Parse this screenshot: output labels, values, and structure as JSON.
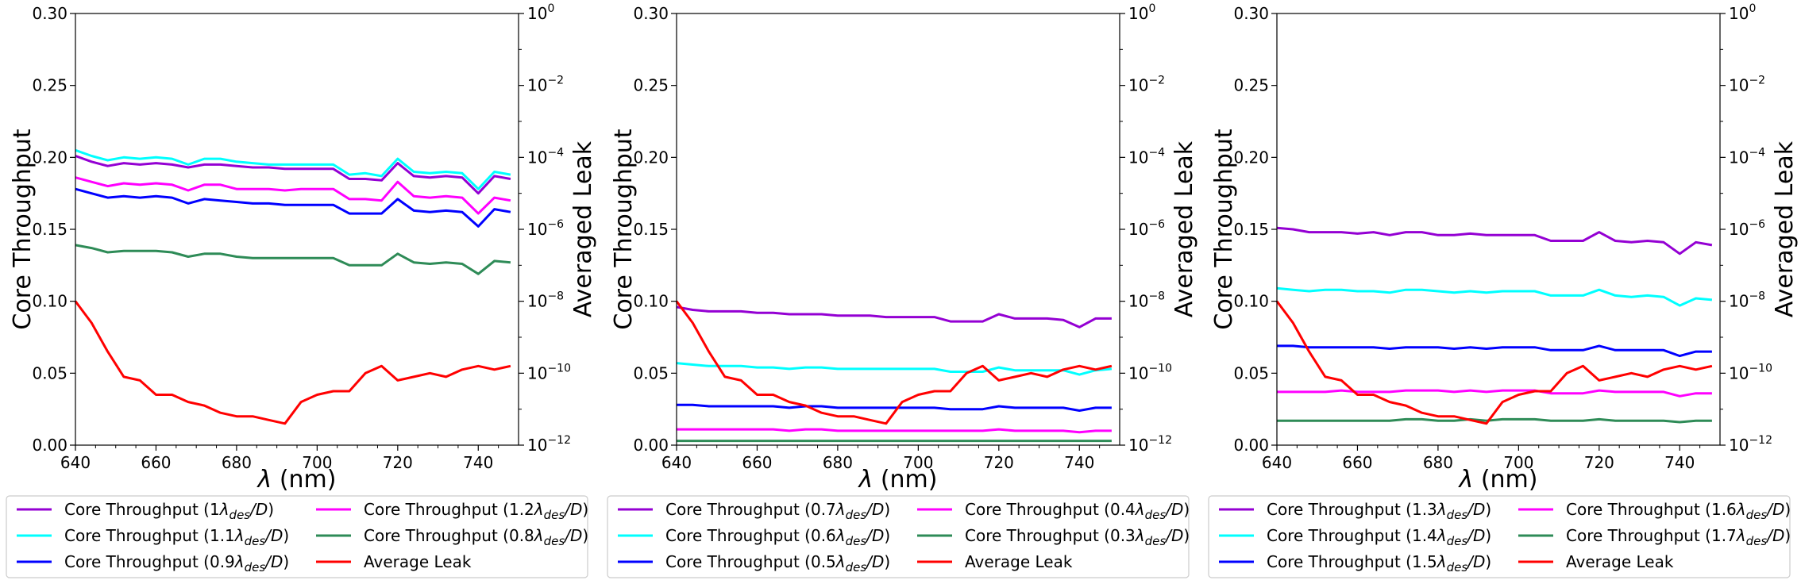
{
  "figure": {
    "colors": {
      "c_purple": "#9400d3",
      "c_cyan": "#00ffff",
      "c_blue": "#0000ff",
      "c_magenta": "#ff00ff",
      "c_green": "#2e8b57",
      "c_red": "#ff0000"
    }
  },
  "chart_data": [
    {
      "type": "line",
      "xlabel": "λ (nm)",
      "ylabel": "Core Throughput",
      "y2label": "Averaged Leak",
      "xlim": [
        640,
        750
      ],
      "ylim": [
        0,
        0.3
      ],
      "y2lim_log10": [
        -12,
        0
      ],
      "xticks": [
        "640",
        "660",
        "680",
        "700",
        "720",
        "740"
      ],
      "yticks": [
        "0.00",
        "0.05",
        "0.10",
        "0.15",
        "0.20",
        "0.25",
        "0.30"
      ],
      "y2ticks_exp": [
        "-12",
        "-10",
        "-8",
        "-6",
        "-4",
        "-2",
        "0"
      ],
      "y2tick_base": "10",
      "x": [
        640,
        644,
        648,
        652,
        656,
        660,
        664,
        668,
        672,
        676,
        680,
        684,
        688,
        692,
        696,
        700,
        704,
        708,
        712,
        716,
        720,
        724,
        728,
        732,
        736,
        740,
        744,
        748
      ],
      "series": [
        {
          "name": "Core Throughput (1λdes/D)",
          "color_key": "c_purple",
          "axis": "left",
          "values": [
            0.201,
            0.197,
            0.194,
            0.196,
            0.195,
            0.196,
            0.195,
            0.193,
            0.195,
            0.195,
            0.194,
            0.193,
            0.193,
            0.192,
            0.192,
            0.192,
            0.192,
            0.185,
            0.185,
            0.184,
            0.196,
            0.187,
            0.186,
            0.187,
            0.186,
            0.175,
            0.187,
            0.185
          ]
        },
        {
          "name": "Core Throughput (1.1λdes/D)",
          "color_key": "c_cyan",
          "axis": "left",
          "values": [
            0.205,
            0.201,
            0.198,
            0.2,
            0.199,
            0.2,
            0.199,
            0.195,
            0.199,
            0.199,
            0.197,
            0.196,
            0.195,
            0.195,
            0.195,
            0.195,
            0.195,
            0.188,
            0.189,
            0.187,
            0.199,
            0.19,
            0.189,
            0.19,
            0.189,
            0.178,
            0.19,
            0.188
          ]
        },
        {
          "name": "Core Throughput (0.9λdes/D)",
          "color_key": "c_blue",
          "axis": "left",
          "values": [
            0.178,
            0.175,
            0.172,
            0.173,
            0.172,
            0.173,
            0.172,
            0.168,
            0.171,
            0.17,
            0.169,
            0.168,
            0.168,
            0.167,
            0.167,
            0.167,
            0.167,
            0.161,
            0.161,
            0.161,
            0.171,
            0.163,
            0.162,
            0.163,
            0.162,
            0.152,
            0.164,
            0.162
          ]
        },
        {
          "name": "Core Throughput (1.2λdes/D)",
          "color_key": "c_magenta",
          "axis": "left",
          "values": [
            0.186,
            0.183,
            0.18,
            0.182,
            0.181,
            0.182,
            0.181,
            0.177,
            0.181,
            0.181,
            0.178,
            0.178,
            0.178,
            0.177,
            0.178,
            0.178,
            0.178,
            0.171,
            0.171,
            0.17,
            0.183,
            0.173,
            0.172,
            0.173,
            0.172,
            0.161,
            0.172,
            0.17
          ]
        },
        {
          "name": "Core Throughput (0.8λdes/D)",
          "color_key": "c_green",
          "axis": "left",
          "values": [
            0.139,
            0.137,
            0.134,
            0.135,
            0.135,
            0.135,
            0.134,
            0.131,
            0.133,
            0.133,
            0.131,
            0.13,
            0.13,
            0.13,
            0.13,
            0.13,
            0.13,
            0.125,
            0.125,
            0.125,
            0.133,
            0.127,
            0.126,
            0.127,
            0.126,
            0.119,
            0.128,
            0.127
          ]
        },
        {
          "name": "Average Leak",
          "color_key": "c_red",
          "axis": "right",
          "log10_values": [
            -8.0,
            -8.6,
            -9.4,
            -10.1,
            -10.2,
            -10.6,
            -10.6,
            -10.8,
            -10.9,
            -11.1,
            -11.2,
            -11.2,
            -11.3,
            -11.4,
            -10.8,
            -10.6,
            -10.5,
            -10.5,
            -10.0,
            -9.8,
            -10.2,
            -10.1,
            -10.0,
            -10.1,
            -9.9,
            -9.8,
            -9.9,
            -9.8
          ]
        }
      ],
      "legend": {
        "location": "bottom",
        "ncol": 2
      }
    },
    {
      "type": "line",
      "xlabel": "λ (nm)",
      "ylabel": "Core Throughput",
      "y2label": "Averaged Leak",
      "xlim": [
        640,
        750
      ],
      "ylim": [
        0,
        0.3
      ],
      "y2lim_log10": [
        -12,
        0
      ],
      "xticks": [
        "640",
        "660",
        "680",
        "700",
        "720",
        "740"
      ],
      "yticks": [
        "0.00",
        "0.05",
        "0.10",
        "0.15",
        "0.20",
        "0.25",
        "0.30"
      ],
      "y2ticks_exp": [
        "-12",
        "-10",
        "-8",
        "-6",
        "-4",
        "-2",
        "0"
      ],
      "y2tick_base": "10",
      "x": [
        640,
        644,
        648,
        652,
        656,
        660,
        664,
        668,
        672,
        676,
        680,
        684,
        688,
        692,
        696,
        700,
        704,
        708,
        712,
        716,
        720,
        724,
        728,
        732,
        736,
        740,
        744,
        748
      ],
      "series": [
        {
          "name": "Core Throughput (0.7λdes/D)",
          "color_key": "c_purple",
          "axis": "left",
          "values": [
            0.096,
            0.094,
            0.093,
            0.093,
            0.093,
            0.092,
            0.092,
            0.091,
            0.091,
            0.091,
            0.09,
            0.09,
            0.09,
            0.089,
            0.089,
            0.089,
            0.089,
            0.086,
            0.086,
            0.086,
            0.091,
            0.088,
            0.088,
            0.088,
            0.087,
            0.082,
            0.088,
            0.088
          ]
        },
        {
          "name": "Core Throughput (0.6λdes/D)",
          "color_key": "c_cyan",
          "axis": "left",
          "values": [
            0.057,
            0.056,
            0.055,
            0.055,
            0.055,
            0.054,
            0.054,
            0.053,
            0.054,
            0.054,
            0.053,
            0.053,
            0.053,
            0.053,
            0.053,
            0.053,
            0.053,
            0.051,
            0.051,
            0.051,
            0.054,
            0.052,
            0.052,
            0.052,
            0.052,
            0.049,
            0.052,
            0.053
          ]
        },
        {
          "name": "Core Throughput (0.5λdes/D)",
          "color_key": "c_blue",
          "axis": "left",
          "values": [
            0.028,
            0.028,
            0.027,
            0.027,
            0.027,
            0.027,
            0.027,
            0.026,
            0.027,
            0.027,
            0.026,
            0.026,
            0.026,
            0.026,
            0.026,
            0.026,
            0.026,
            0.025,
            0.025,
            0.025,
            0.027,
            0.026,
            0.026,
            0.026,
            0.026,
            0.024,
            0.026,
            0.026
          ]
        },
        {
          "name": "Core Throughput (0.4λdes/D)",
          "color_key": "c_magenta",
          "axis": "left",
          "values": [
            0.011,
            0.011,
            0.011,
            0.011,
            0.011,
            0.011,
            0.011,
            0.01,
            0.011,
            0.011,
            0.01,
            0.01,
            0.01,
            0.01,
            0.01,
            0.01,
            0.01,
            0.01,
            0.01,
            0.01,
            0.011,
            0.01,
            0.01,
            0.01,
            0.01,
            0.009,
            0.01,
            0.01
          ]
        },
        {
          "name": "Core Throughput (0.3λdes/D)",
          "color_key": "c_green",
          "axis": "left",
          "values": [
            0.003,
            0.003,
            0.003,
            0.003,
            0.003,
            0.003,
            0.003,
            0.003,
            0.003,
            0.003,
            0.003,
            0.003,
            0.003,
            0.003,
            0.003,
            0.003,
            0.003,
            0.003,
            0.003,
            0.003,
            0.003,
            0.003,
            0.003,
            0.003,
            0.003,
            0.003,
            0.003,
            0.003
          ]
        },
        {
          "name": "Average Leak",
          "color_key": "c_red",
          "axis": "right",
          "log10_values": [
            -8.0,
            -8.6,
            -9.4,
            -10.1,
            -10.2,
            -10.6,
            -10.6,
            -10.8,
            -10.9,
            -11.1,
            -11.2,
            -11.2,
            -11.3,
            -11.4,
            -10.8,
            -10.6,
            -10.5,
            -10.5,
            -10.0,
            -9.8,
            -10.2,
            -10.1,
            -10.0,
            -10.1,
            -9.9,
            -9.8,
            -9.9,
            -9.8
          ]
        }
      ],
      "legend": {
        "location": "bottom",
        "ncol": 2
      }
    },
    {
      "type": "line",
      "xlabel": "λ (nm)",
      "ylabel": "Core Throughput",
      "y2label": "Averaged Leak",
      "xlim": [
        640,
        750
      ],
      "ylim": [
        0,
        0.3
      ],
      "y2lim_log10": [
        -12,
        0
      ],
      "xticks": [
        "640",
        "660",
        "680",
        "700",
        "720",
        "740"
      ],
      "yticks": [
        "0.00",
        "0.05",
        "0.10",
        "0.15",
        "0.20",
        "0.25",
        "0.30"
      ],
      "y2ticks_exp": [
        "-12",
        "-10",
        "-8",
        "-6",
        "-4",
        "-2",
        "0"
      ],
      "y2tick_base": "10",
      "x": [
        640,
        644,
        648,
        652,
        656,
        660,
        664,
        668,
        672,
        676,
        680,
        684,
        688,
        692,
        696,
        700,
        704,
        708,
        712,
        716,
        720,
        724,
        728,
        732,
        736,
        740,
        744,
        748
      ],
      "series": [
        {
          "name": "Core Throughput (1.3λdes/D)",
          "color_key": "c_purple",
          "axis": "left",
          "values": [
            0.151,
            0.15,
            0.148,
            0.148,
            0.148,
            0.147,
            0.148,
            0.146,
            0.148,
            0.148,
            0.146,
            0.146,
            0.147,
            0.146,
            0.146,
            0.146,
            0.146,
            0.142,
            0.142,
            0.142,
            0.148,
            0.142,
            0.141,
            0.142,
            0.141,
            0.133,
            0.141,
            0.139
          ]
        },
        {
          "name": "Core Throughput (1.4λdes/D)",
          "color_key": "c_cyan",
          "axis": "left",
          "values": [
            0.109,
            0.108,
            0.107,
            0.108,
            0.108,
            0.107,
            0.107,
            0.106,
            0.108,
            0.108,
            0.107,
            0.106,
            0.107,
            0.106,
            0.107,
            0.107,
            0.107,
            0.104,
            0.104,
            0.104,
            0.108,
            0.104,
            0.103,
            0.104,
            0.103,
            0.097,
            0.102,
            0.101
          ]
        },
        {
          "name": "Core Throughput (1.5λdes/D)",
          "color_key": "c_blue",
          "axis": "left",
          "values": [
            0.069,
            0.069,
            0.068,
            0.068,
            0.068,
            0.068,
            0.068,
            0.067,
            0.068,
            0.068,
            0.068,
            0.067,
            0.068,
            0.067,
            0.068,
            0.068,
            0.068,
            0.066,
            0.066,
            0.066,
            0.069,
            0.066,
            0.066,
            0.066,
            0.066,
            0.062,
            0.065,
            0.065
          ]
        },
        {
          "name": "Core Throughput (1.6λdes/D)",
          "color_key": "c_magenta",
          "axis": "left",
          "values": [
            0.037,
            0.037,
            0.037,
            0.037,
            0.038,
            0.037,
            0.037,
            0.037,
            0.038,
            0.038,
            0.038,
            0.037,
            0.038,
            0.037,
            0.038,
            0.038,
            0.038,
            0.036,
            0.036,
            0.036,
            0.038,
            0.037,
            0.037,
            0.037,
            0.037,
            0.034,
            0.036,
            0.036
          ]
        },
        {
          "name": "Core Throughput (1.7λdes/D)",
          "color_key": "c_green",
          "axis": "left",
          "values": [
            0.017,
            0.017,
            0.017,
            0.017,
            0.017,
            0.017,
            0.017,
            0.017,
            0.018,
            0.018,
            0.017,
            0.017,
            0.018,
            0.017,
            0.018,
            0.018,
            0.018,
            0.017,
            0.017,
            0.017,
            0.018,
            0.017,
            0.017,
            0.017,
            0.017,
            0.016,
            0.017,
            0.017
          ]
        },
        {
          "name": "Average Leak",
          "color_key": "c_red",
          "axis": "right",
          "log10_values": [
            -8.0,
            -8.6,
            -9.4,
            -10.1,
            -10.2,
            -10.6,
            -10.6,
            -10.8,
            -10.9,
            -11.1,
            -11.2,
            -11.2,
            -11.3,
            -11.4,
            -10.8,
            -10.6,
            -10.5,
            -10.5,
            -10.0,
            -9.8,
            -10.2,
            -10.1,
            -10.0,
            -10.1,
            -9.9,
            -9.8,
            -9.9,
            -9.8
          ]
        }
      ],
      "legend": {
        "location": "bottom",
        "ncol": 2
      }
    }
  ]
}
